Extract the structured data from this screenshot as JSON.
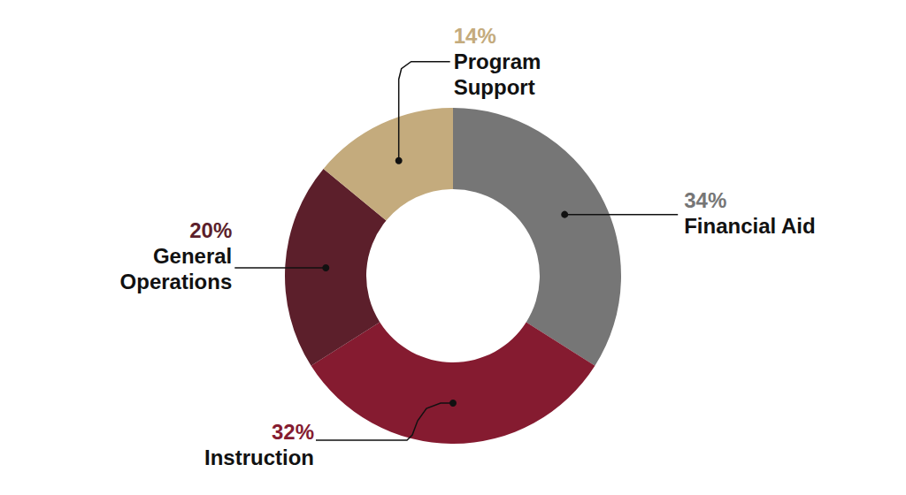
{
  "chart_data": {
    "type": "pie",
    "categories": [
      "Financial Aid",
      "Instruction",
      "General Operations",
      "Program Support"
    ],
    "values": [
      34,
      32,
      20,
      14
    ],
    "value_labels": [
      "34%",
      "32%",
      "20%",
      "14%"
    ],
    "colors": [
      "#767676",
      "#851b30",
      "#5c1f2b",
      "#c4ab7d"
    ],
    "data_labels": true
  }
}
